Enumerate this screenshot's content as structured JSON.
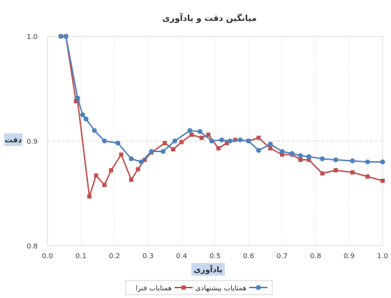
{
  "chart_data": {
    "type": "line",
    "title": "میانگین دقت و یادآوری",
    "xlabel": "یادآوری",
    "ylabel": "دقت",
    "xlim": [
      0.0,
      1.0
    ],
    "ylim": [
      0.8,
      1.0
    ],
    "xticks": [
      "0.0",
      "0.1",
      "0.2",
      "0.3",
      "0.4",
      "0.5",
      "0.6",
      "0.7",
      "0.8",
      "0.9",
      "1.0"
    ],
    "yticks": [
      "0.8",
      "0.9",
      "1.0"
    ],
    "grid": "vertical dotted, horizontal dashed",
    "legend_position": "bottom",
    "series": [
      {
        "name": "همتایاب فنرا",
        "color": "#c0504d",
        "marker": "square",
        "points": [
          [
            0.04,
            1.0
          ],
          [
            0.055,
            1.0
          ],
          [
            0.085,
            0.938
          ],
          [
            0.09,
            0.938
          ],
          [
            0.125,
            0.847
          ],
          [
            0.145,
            0.867
          ],
          [
            0.17,
            0.858
          ],
          [
            0.19,
            0.872
          ],
          [
            0.22,
            0.887
          ],
          [
            0.25,
            0.863
          ],
          [
            0.27,
            0.873
          ],
          [
            0.29,
            0.882
          ],
          [
            0.31,
            0.889
          ],
          [
            0.35,
            0.898
          ],
          [
            0.375,
            0.892
          ],
          [
            0.4,
            0.899
          ],
          [
            0.43,
            0.906
          ],
          [
            0.46,
            0.903
          ],
          [
            0.48,
            0.906
          ],
          [
            0.51,
            0.893
          ],
          [
            0.535,
            0.898
          ],
          [
            0.56,
            0.901
          ],
          [
            0.6,
            0.9
          ],
          [
            0.63,
            0.903
          ],
          [
            0.665,
            0.893
          ],
          [
            0.7,
            0.887
          ],
          [
            0.73,
            0.887
          ],
          [
            0.755,
            0.882
          ],
          [
            0.78,
            0.882
          ],
          [
            0.82,
            0.869
          ],
          [
            0.86,
            0.872
          ],
          [
            0.91,
            0.87
          ],
          [
            0.955,
            0.866
          ],
          [
            1.0,
            0.862
          ]
        ]
      },
      {
        "name": "همتایاب پیشنهادی",
        "color": "#4f81bd",
        "marker": "circle",
        "points": [
          [
            0.04,
            1.0
          ],
          [
            0.055,
            1.0
          ],
          [
            0.09,
            0.941
          ],
          [
            0.105,
            0.925
          ],
          [
            0.115,
            0.921
          ],
          [
            0.14,
            0.91
          ],
          [
            0.17,
            0.9
          ],
          [
            0.21,
            0.898
          ],
          [
            0.25,
            0.883
          ],
          [
            0.28,
            0.88
          ],
          [
            0.31,
            0.89
          ],
          [
            0.345,
            0.89
          ],
          [
            0.38,
            0.9
          ],
          [
            0.425,
            0.91
          ],
          [
            0.455,
            0.909
          ],
          [
            0.49,
            0.9
          ],
          [
            0.52,
            0.901
          ],
          [
            0.545,
            0.9
          ],
          [
            0.575,
            0.901
          ],
          [
            0.6,
            0.9
          ],
          [
            0.63,
            0.891
          ],
          [
            0.665,
            0.897
          ],
          [
            0.7,
            0.89
          ],
          [
            0.73,
            0.888
          ],
          [
            0.755,
            0.886
          ],
          [
            0.78,
            0.885
          ],
          [
            0.82,
            0.883
          ],
          [
            0.86,
            0.882
          ],
          [
            0.91,
            0.881
          ],
          [
            0.955,
            0.88
          ],
          [
            1.0,
            0.88
          ]
        ]
      }
    ]
  }
}
